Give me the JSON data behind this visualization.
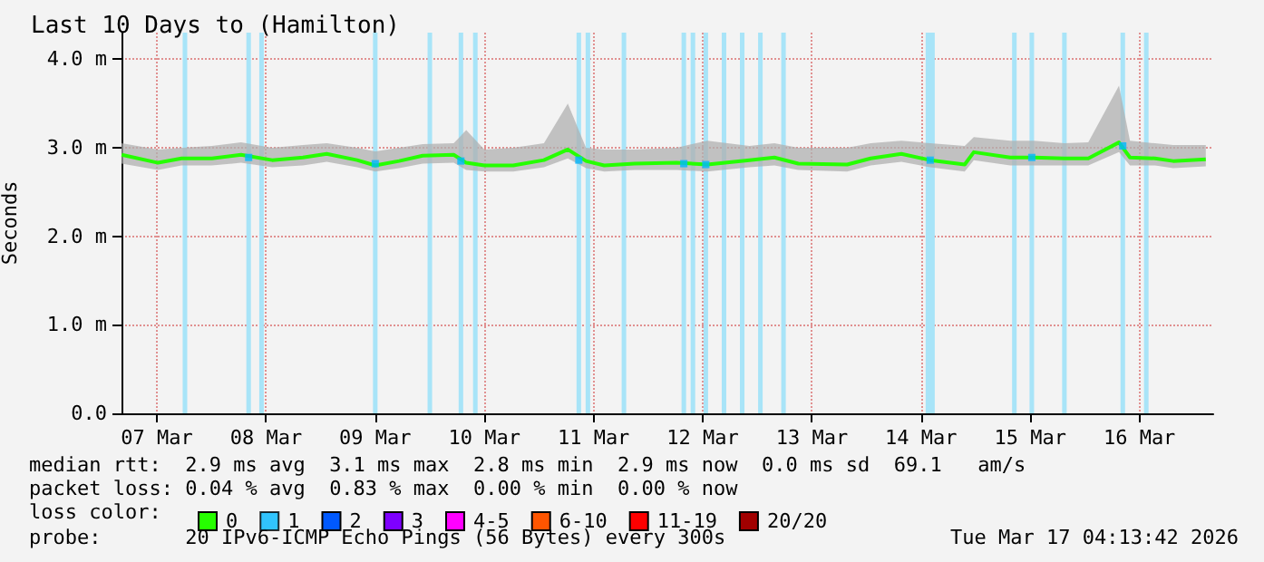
{
  "chart_data": {
    "type": "line",
    "title": "Last 10 Days to (Hamilton)",
    "ylabel": "Seconds",
    "legend_title": "loss color:",
    "x": [
      "2026-03-07T04:15",
      "2026-03-07T12:15",
      "2026-03-07T17:25",
      "2026-03-08T00:05",
      "2026-03-08T06:30",
      "2026-03-08T13:20",
      "2026-03-08T20:05",
      "2026-03-09T01:20",
      "2026-03-09T08:00",
      "2026-03-09T12:00",
      "2026-03-09T17:15",
      "2026-03-09T22:25",
      "2026-03-10T05:15",
      "2026-03-10T08:00",
      "2026-03-10T12:00",
      "2026-03-10T18:20",
      "2026-03-11T01:05",
      "2026-03-11T06:20",
      "2026-03-11T10:20",
      "2026-03-11T14:20",
      "2026-03-11T21:00",
      "2026-03-12T06:15",
      "2026-03-12T13:00",
      "2026-03-12T22:15",
      "2026-03-13T03:45",
      "2026-03-13T09:00",
      "2026-03-13T19:45",
      "2026-03-14T00:55",
      "2026-03-14T07:40",
      "2026-03-14T14:00",
      "2026-03-14T21:35",
      "2026-03-14T23:35",
      "2026-03-15T07:35",
      "2026-03-15T12:45",
      "2026-03-15T19:30",
      "2026-03-16T00:45",
      "2026-03-16T07:30",
      "2026-03-16T09:55",
      "2026-03-16T15:25",
      "2026-03-16T19:25",
      "2026-03-17T02:35"
    ],
    "series": [
      {
        "name": "0",
        "color": "#26ff00",
        "values": [
          2.92,
          2.83,
          2.88,
          2.88,
          2.92,
          2.86,
          2.89,
          2.93,
          2.86,
          2.8,
          2.85,
          2.91,
          2.92,
          2.83,
          2.8,
          2.8,
          2.86,
          2.98,
          2.85,
          2.8,
          2.82,
          2.83,
          2.81,
          2.86,
          2.89,
          2.82,
          2.81,
          2.88,
          2.93,
          2.86,
          2.81,
          2.95,
          2.89,
          2.89,
          2.88,
          2.88,
          3.06,
          2.89,
          2.88,
          2.85,
          2.87
        ],
        "lower": [
          2.82,
          2.75,
          2.8,
          2.8,
          2.83,
          2.78,
          2.8,
          2.84,
          2.78,
          2.73,
          2.77,
          2.82,
          2.83,
          2.75,
          2.73,
          2.73,
          2.78,
          2.88,
          2.77,
          2.73,
          2.75,
          2.75,
          2.73,
          2.78,
          2.8,
          2.75,
          2.73,
          2.8,
          2.84,
          2.78,
          2.73,
          2.86,
          2.8,
          2.8,
          2.8,
          2.8,
          2.95,
          2.8,
          2.8,
          2.77,
          2.79
        ],
        "upper": [
          3.05,
          2.98,
          3.0,
          3.02,
          3.06,
          3.0,
          3.03,
          3.05,
          3.0,
          2.96,
          3.0,
          3.04,
          3.05,
          3.2,
          2.98,
          3.0,
          3.05,
          3.5,
          3.0,
          2.98,
          2.98,
          3.0,
          3.08,
          3.02,
          3.05,
          3.0,
          3.0,
          3.05,
          3.08,
          3.05,
          3.02,
          3.12,
          3.08,
          3.08,
          3.05,
          3.06,
          3.7,
          3.08,
          3.05,
          3.03,
          3.03
        ]
      },
      {
        "name": "1",
        "color": "#00b8ff",
        "type": "scatter",
        "marker": "square",
        "x": [
          "2026-03-08T08:10",
          "2026-03-09T12:00",
          "2026-03-10T06:50",
          "2026-03-11T08:45",
          "2026-03-12T07:50",
          "2026-03-12T12:40",
          "2026-03-14T14:00",
          "2026-03-15T12:20",
          "2026-03-16T08:20"
        ],
        "values": [
          2.89,
          2.82,
          2.85,
          2.86,
          2.82,
          2.81,
          2.86,
          2.89,
          3.02
        ]
      },
      {
        "name": "2",
        "color": "#0059ff",
        "values": [
          null,
          null,
          null,
          null,
          null,
          null,
          null,
          null,
          null,
          null,
          null,
          null,
          null,
          null,
          null,
          null,
          null,
          null,
          null,
          null,
          null,
          null,
          null,
          null,
          null,
          null,
          null,
          null,
          null,
          null,
          null,
          null,
          null,
          null,
          null,
          null,
          null,
          null,
          null,
          null,
          null
        ]
      },
      {
        "name": "3",
        "color": "#7e00ff",
        "values": [
          null,
          null,
          null,
          null,
          null,
          null,
          null,
          null,
          null,
          null,
          null,
          null,
          null,
          null,
          null,
          null,
          null,
          null,
          null,
          null,
          null,
          null,
          null,
          null,
          null,
          null,
          null,
          null,
          null,
          null,
          null,
          null,
          null,
          null,
          null,
          null,
          null,
          null,
          null,
          null,
          null
        ]
      },
      {
        "name": "4-5",
        "color": "#ff00ff",
        "values": [
          null,
          null,
          null,
          null,
          null,
          null,
          null,
          null,
          null,
          null,
          null,
          null,
          null,
          null,
          null,
          null,
          null,
          null,
          null,
          null,
          null,
          null,
          null,
          null,
          null,
          null,
          null,
          null,
          null,
          null,
          null,
          null,
          null,
          null,
          null,
          null,
          null,
          null,
          null,
          null,
          null
        ]
      },
      {
        "name": "6-10",
        "color": "#ff5500",
        "values": [
          null,
          null,
          null,
          null,
          null,
          null,
          null,
          null,
          null,
          null,
          null,
          null,
          null,
          null,
          null,
          null,
          null,
          null,
          null,
          null,
          null,
          null,
          null,
          null,
          null,
          null,
          null,
          null,
          null,
          null,
          null,
          null,
          null,
          null,
          null,
          null,
          null,
          null,
          null,
          null,
          null
        ]
      },
      {
        "name": "11-19",
        "color": "#ff0000",
        "values": [
          null,
          null,
          null,
          null,
          null,
          null,
          null,
          null,
          null,
          null,
          null,
          null,
          null,
          null,
          null,
          null,
          null,
          null,
          null,
          null,
          null,
          null,
          null,
          null,
          null,
          null,
          null,
          null,
          null,
          null,
          null,
          null,
          null,
          null,
          null,
          null,
          null,
          null,
          null,
          null,
          null
        ]
      },
      {
        "name": "20/20",
        "color": "#a10000",
        "values": [
          null,
          null,
          null,
          null,
          null,
          null,
          null,
          null,
          null,
          null,
          null,
          null,
          null,
          null,
          null,
          null,
          null,
          null,
          null,
          null,
          null,
          null,
          null,
          null,
          null,
          null,
          null,
          null,
          null,
          null,
          null,
          null,
          null,
          null,
          null,
          null,
          null,
          null,
          null,
          null,
          null
        ]
      }
    ],
    "bands": [
      {
        "axis": "x",
        "from": "2026-03-07T17:40",
        "to": "2026-03-07T18:40",
        "color": "#a8e4f8"
      },
      {
        "axis": "x",
        "from": "2026-03-08T07:40",
        "to": "2026-03-08T08:40",
        "color": "#a8e4f8"
      },
      {
        "axis": "x",
        "from": "2026-03-08T10:30",
        "to": "2026-03-08T11:30",
        "color": "#a8e4f8"
      },
      {
        "axis": "x",
        "from": "2026-03-09T11:30",
        "to": "2026-03-09T12:30",
        "color": "#a8e4f8"
      },
      {
        "axis": "x",
        "from": "2026-03-09T23:30",
        "to": "2026-03-10T00:30",
        "color": "#a8e4f8"
      },
      {
        "axis": "x",
        "from": "2026-03-10T06:20",
        "to": "2026-03-10T07:20",
        "color": "#a8e4f8"
      },
      {
        "axis": "x",
        "from": "2026-03-10T09:30",
        "to": "2026-03-10T10:30",
        "color": "#a8e4f8"
      },
      {
        "axis": "x",
        "from": "2026-03-11T08:15",
        "to": "2026-03-11T09:15",
        "color": "#a8e4f8"
      },
      {
        "axis": "x",
        "from": "2026-03-11T10:15",
        "to": "2026-03-11T11:15",
        "color": "#a8e4f8"
      },
      {
        "axis": "x",
        "from": "2026-03-11T18:10",
        "to": "2026-03-11T19:10",
        "color": "#a8e4f8"
      },
      {
        "axis": "x",
        "from": "2026-03-12T07:20",
        "to": "2026-03-12T08:20",
        "color": "#a8e4f8"
      },
      {
        "axis": "x",
        "from": "2026-03-12T09:20",
        "to": "2026-03-12T10:20",
        "color": "#a8e4f8"
      },
      {
        "axis": "x",
        "from": "2026-03-12T12:10",
        "to": "2026-03-12T13:10",
        "color": "#a8e4f8"
      },
      {
        "axis": "x",
        "from": "2026-03-12T16:10",
        "to": "2026-03-12T17:10",
        "color": "#a8e4f8"
      },
      {
        "axis": "x",
        "from": "2026-03-12T20:10",
        "to": "2026-03-12T21:10",
        "color": "#a8e4f8"
      },
      {
        "axis": "x",
        "from": "2026-03-13T00:10",
        "to": "2026-03-13T01:10",
        "color": "#a8e4f8"
      },
      {
        "axis": "x",
        "from": "2026-03-13T05:15",
        "to": "2026-03-13T06:15",
        "color": "#a8e4f8"
      },
      {
        "axis": "x",
        "from": "2026-03-14T13:00",
        "to": "2026-03-14T15:00",
        "color": "#a8e4f8"
      },
      {
        "axis": "x",
        "from": "2026-03-15T08:00",
        "to": "2026-03-15T09:00",
        "color": "#a8e4f8"
      },
      {
        "axis": "x",
        "from": "2026-03-15T11:50",
        "to": "2026-03-15T12:50",
        "color": "#a8e4f8"
      },
      {
        "axis": "x",
        "from": "2026-03-15T19:00",
        "to": "2026-03-15T20:00",
        "color": "#a8e4f8"
      },
      {
        "axis": "x",
        "from": "2026-03-16T07:50",
        "to": "2026-03-16T08:50",
        "color": "#a8e4f8"
      },
      {
        "axis": "x",
        "from": "2026-03-16T13:00",
        "to": "2026-03-16T14:00",
        "color": "#a8e4f8"
      }
    ],
    "xlim": [
      "2026-03-07T04:13",
      "2026-03-17T04:13"
    ],
    "xticks": [
      {
        "value": "2026-03-07T12:00",
        "label": "07 Mar"
      },
      {
        "value": "2026-03-08T12:00",
        "label": "08 Mar"
      },
      {
        "value": "2026-03-09T12:00",
        "label": "09 Mar"
      },
      {
        "value": "2026-03-10T12:00",
        "label": "10 Mar"
      },
      {
        "value": "2026-03-11T12:00",
        "label": "11 Mar"
      },
      {
        "value": "2026-03-12T12:00",
        "label": "12 Mar"
      },
      {
        "value": "2026-03-13T12:00",
        "label": "13 Mar"
      },
      {
        "value": "2026-03-14T12:00",
        "label": "14 Mar"
      },
      {
        "value": "2026-03-15T12:00",
        "label": "15 Mar"
      },
      {
        "value": "2026-03-16T12:00",
        "label": "16 Mar"
      }
    ],
    "ylim": [
      0,
      4.3
    ],
    "yticks": [
      {
        "value": 0,
        "label": "0.0"
      },
      {
        "value": 1,
        "label": "1.0 m"
      },
      {
        "value": 2,
        "label": "2.0 m"
      },
      {
        "value": 3,
        "label": "3.0 m"
      },
      {
        "value": 4,
        "label": "4.0 m"
      }
    ],
    "grid": true,
    "legend": "bottom left",
    "marker": "none",
    "line_style": "solid",
    "annotations": [
      "median rtt:  2.9 ms avg  3.1 ms max  2.8 ms min  2.9 ms now  0.0 ms sd  69.1   am/s",
      "packet loss: 0.04 % avg  0.83 % max  0.00 % min  0.00 % now",
      "probe:       20 IPv6-ICMP Echo Pings (56 Bytes) every 300s",
      "Tue Mar 17 04:13:42 2026"
    ]
  }
}
